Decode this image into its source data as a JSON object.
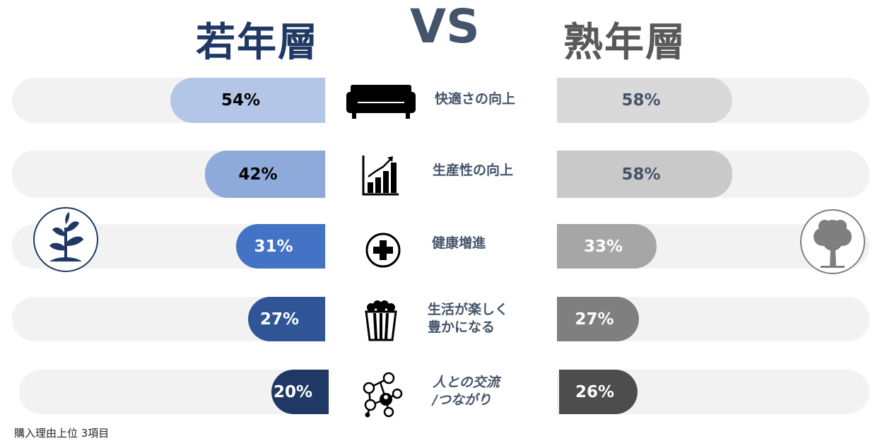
{
  "header": {
    "left_title": "若年層",
    "vs": "VS",
    "right_title": "熟年層"
  },
  "footnote": "購入理由上位 3項目",
  "chart_data": {
    "type": "bar",
    "categories": [
      "快適さの向上",
      "生産性の向上",
      "健康増進",
      "生活が楽しく豊かになる",
      "人との交流/つながり"
    ],
    "category_lines": [
      [
        "快適さの向上"
      ],
      [
        "生産性の向上"
      ],
      [
        "健康増進"
      ],
      [
        "生活が楽しく",
        "豊かになる"
      ],
      [
        "人との交流",
        "/つながり"
      ]
    ],
    "series": [
      {
        "name": "若年層",
        "values": [
          54,
          42,
          31,
          27,
          20
        ],
        "labels": [
          "54%",
          "42%",
          "31%",
          "27%",
          "20%"
        ],
        "colors": [
          "#b4c6e7",
          "#8eaadb",
          "#4472c4",
          "#2f5597",
          "#1f3864"
        ],
        "label_colors": [
          "#000000",
          "#000000",
          "#ffffff",
          "#ffffff",
          "#ffffff"
        ]
      },
      {
        "name": "熟年層",
        "values": [
          58,
          58,
          33,
          27,
          26
        ],
        "labels": [
          "58%",
          "58%",
          "33%",
          "27%",
          "26%"
        ],
        "colors": [
          "#d9d9d9",
          "#c9c9c9",
          "#a6a6a6",
          "#7f7f7f",
          "#4d4d4d"
        ],
        "label_colors": [
          "#44546a",
          "#44546a",
          "#ffffff",
          "#ffffff",
          "#ffffff"
        ]
      }
    ],
    "icons": [
      "sofa-icon",
      "bar-chart-icon",
      "medical-cross-icon",
      "popcorn-icon",
      "network-people-icon"
    ],
    "track_color": "#f2f2f2",
    "xlim": [
      0,
      100
    ]
  },
  "decorations": {
    "left_badge": "sprout-icon",
    "right_badge": "tree-icon"
  }
}
